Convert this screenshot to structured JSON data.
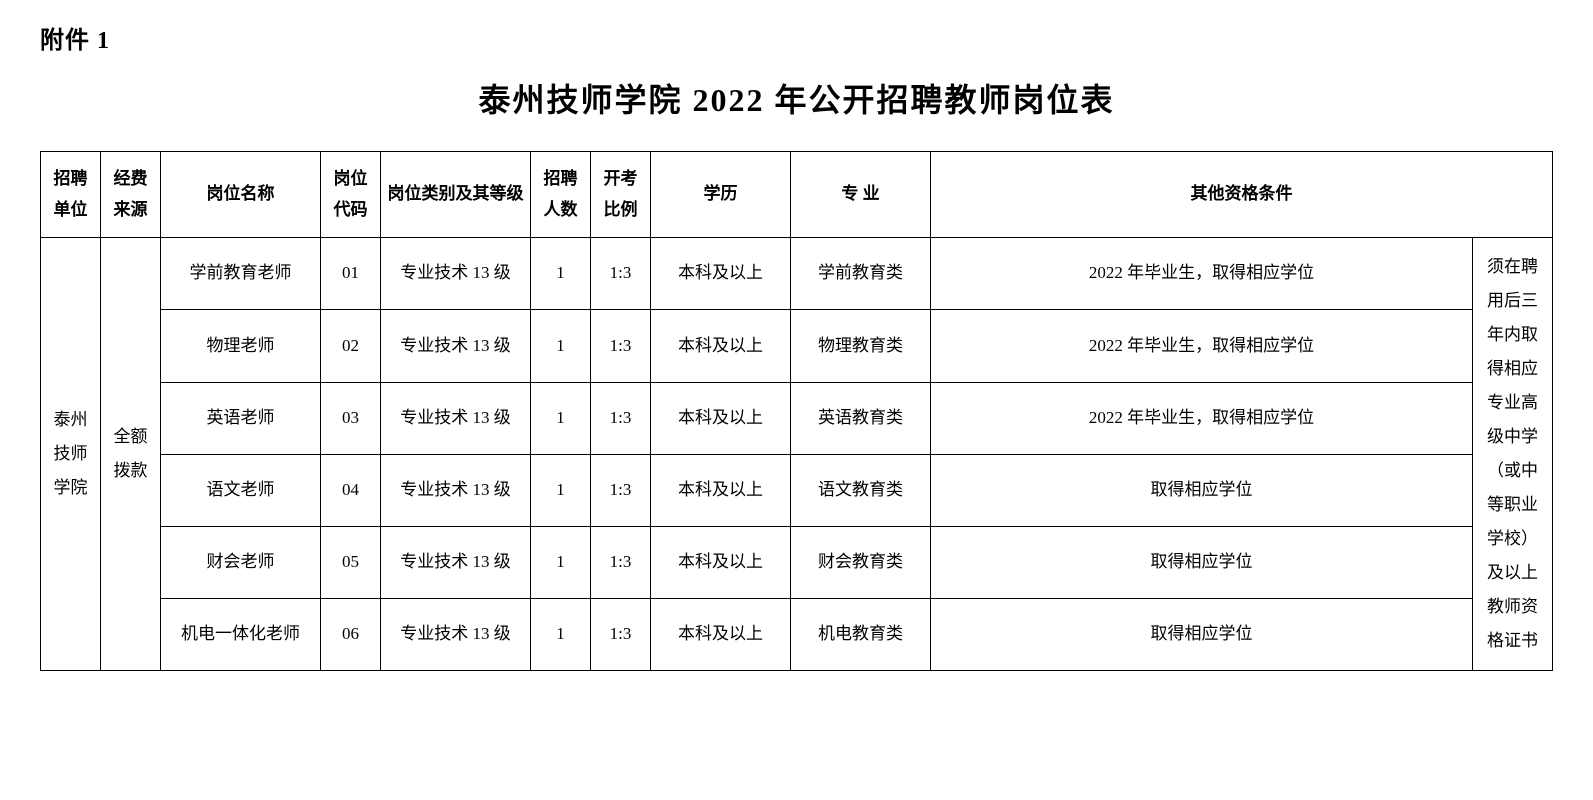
{
  "attachment_label": "附件 1",
  "title": "泰州技师学院 2022 年公开招聘教师岗位表",
  "headers": {
    "unit": "招聘单位",
    "funding": "经费来源",
    "position_name": "岗位名称",
    "position_code": "岗位代码",
    "category": "岗位类别及其等级",
    "count": "招聘人数",
    "ratio": "开考比例",
    "education": "学历",
    "major": "专 业",
    "other_qualifications": "其他资格条件"
  },
  "unit_value": "泰州技师学院",
  "funding_value": "全额拨款",
  "extra_requirement": "须在聘用后三年内取得相应专业高级中学（或中等职业学校）及以上教师资格证书",
  "rows": [
    {
      "position": "学前教育老师",
      "code": "01",
      "category": "专业技术 13 级",
      "count": "1",
      "ratio": "1:3",
      "education": "本科及以上",
      "major": "学前教育类",
      "other": "2022 年毕业生，取得相应学位"
    },
    {
      "position": "物理老师",
      "code": "02",
      "category": "专业技术 13 级",
      "count": "1",
      "ratio": "1:3",
      "education": "本科及以上",
      "major": "物理教育类",
      "other": "2022 年毕业生，取得相应学位"
    },
    {
      "position": "英语老师",
      "code": "03",
      "category": "专业技术 13 级",
      "count": "1",
      "ratio": "1:3",
      "education": "本科及以上",
      "major": "英语教育类",
      "other": "2022 年毕业生，取得相应学位"
    },
    {
      "position": "语文老师",
      "code": "04",
      "category": "专业技术 13 级",
      "count": "1",
      "ratio": "1:3",
      "education": "本科及以上",
      "major": "语文教育类",
      "other": "取得相应学位"
    },
    {
      "position": "财会老师",
      "code": "05",
      "category": "专业技术 13 级",
      "count": "1",
      "ratio": "1:3",
      "education": "本科及以上",
      "major": "财会教育类",
      "other": "取得相应学位"
    },
    {
      "position": "机电一体化老师",
      "code": "06",
      "category": "专业技术 13 级",
      "count": "1",
      "ratio": "1:3",
      "education": "本科及以上",
      "major": "机电教育类",
      "other": "取得相应学位"
    }
  ]
}
